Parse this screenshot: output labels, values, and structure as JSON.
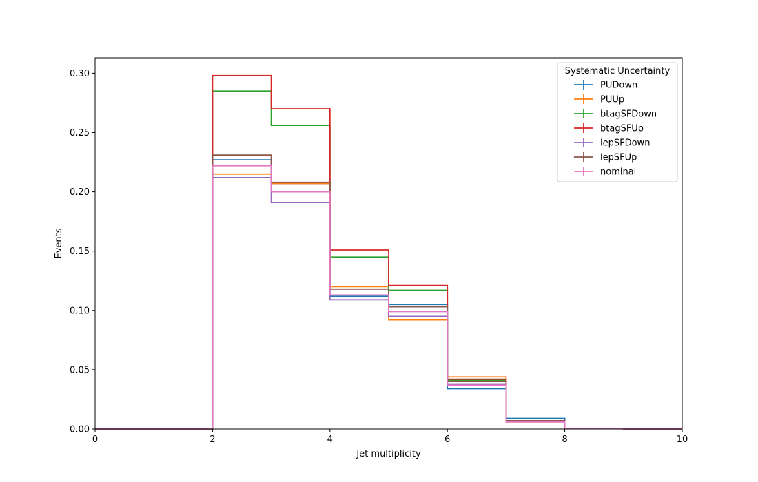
{
  "chart_data": {
    "type": "line",
    "drawstyle": "step",
    "title": "",
    "xlabel": "Jet multiplicity",
    "ylabel": "Events",
    "xlim": [
      0,
      10
    ],
    "ylim": [
      0,
      0.313
    ],
    "xticks": [
      0,
      2,
      4,
      6,
      8,
      10
    ],
    "yticks": [
      0.0,
      0.05,
      0.1,
      0.15,
      0.2,
      0.25,
      0.3
    ],
    "xtick_labels": [
      "0",
      "2",
      "4",
      "6",
      "8",
      "10"
    ],
    "ytick_labels": [
      "0.00",
      "0.05",
      "0.10",
      "0.15",
      "0.20",
      "0.25",
      "0.30"
    ],
    "grid": false,
    "legend": {
      "title": "Systematic Uncertainty",
      "placement": "top-right"
    },
    "bin_edges": [
      0,
      1,
      2,
      3,
      4,
      5,
      6,
      7,
      8,
      9,
      10
    ],
    "series": [
      {
        "name": "PUDown",
        "color": "#1f77b4",
        "values": [
          0,
          0,
          0.227,
          0.207,
          0.112,
          0.105,
          0.034,
          0.009,
          0.0005,
          0
        ]
      },
      {
        "name": "PUUp",
        "color": "#ff7f0e",
        "values": [
          0,
          0,
          0.215,
          0.207,
          0.12,
          0.092,
          0.044,
          0.006,
          0.0005,
          0
        ]
      },
      {
        "name": "btagSFDown",
        "color": "#2ca02c",
        "values": [
          0,
          0,
          0.285,
          0.256,
          0.145,
          0.117,
          0.041,
          0.007,
          0.0005,
          0
        ]
      },
      {
        "name": "btagSFUp",
        "color": "#d62728",
        "values": [
          0,
          0,
          0.298,
          0.27,
          0.151,
          0.121,
          0.042,
          0.007,
          0.0005,
          0
        ]
      },
      {
        "name": "lepSFDown",
        "color": "#9467bd",
        "values": [
          0,
          0,
          0.212,
          0.191,
          0.109,
          0.095,
          0.038,
          0.006,
          0.0005,
          0
        ]
      },
      {
        "name": "lepSFUp",
        "color": "#8c564b",
        "values": [
          0,
          0,
          0.231,
          0.208,
          0.118,
          0.103,
          0.04,
          0.007,
          0.0005,
          0
        ]
      },
      {
        "name": "nominal",
        "color": "#e377c2",
        "values": [
          0,
          0,
          0.222,
          0.2,
          0.113,
          0.099,
          0.037,
          0.006,
          0.0005,
          0
        ]
      }
    ]
  }
}
